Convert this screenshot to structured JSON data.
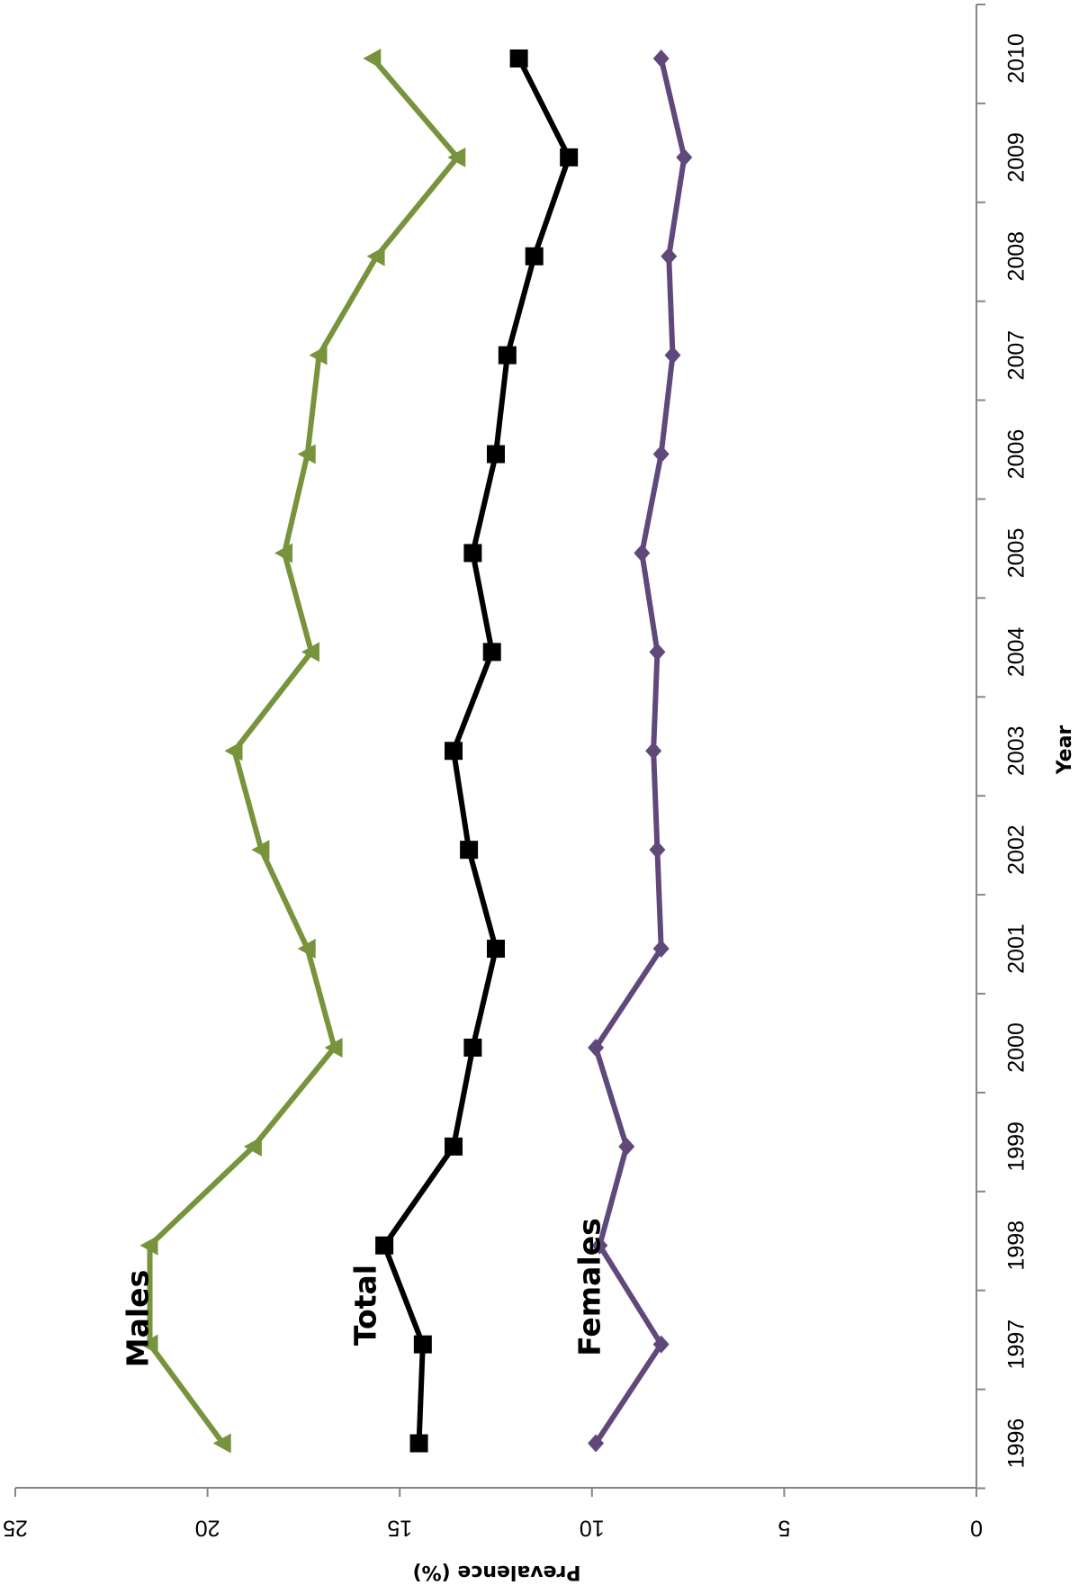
{
  "chart_data": {
    "type": "line",
    "orientation": "rotated-90-clockwise",
    "xlabel": "Year",
    "ylabel": "Prevalence (%)",
    "categories": [
      "1996",
      "1997",
      "1998",
      "1999",
      "2000",
      "2001",
      "2002",
      "2003",
      "2004",
      "2005",
      "2006",
      "2007",
      "2008",
      "2009",
      "2010"
    ],
    "ylim": [
      0,
      25
    ],
    "yticks": [
      "0",
      "5",
      "10",
      "15",
      "20",
      "25"
    ],
    "grid": false,
    "legend": "none",
    "series": [
      {
        "name": "Males",
        "color": "#77933C",
        "marker": "triangle",
        "values": [
          19.6,
          21.5,
          21.5,
          18.8,
          16.7,
          17.4,
          18.6,
          19.3,
          17.3,
          18.0,
          17.4,
          17.1,
          15.6,
          13.5,
          15.7
        ]
      },
      {
        "name": "Total",
        "color": "#000000",
        "marker": "square",
        "values": [
          14.5,
          14.4,
          15.4,
          13.6,
          13.1,
          12.5,
          13.2,
          13.6,
          12.6,
          13.1,
          12.5,
          12.2,
          11.5,
          10.6,
          11.9
        ]
      },
      {
        "name": "Females",
        "color": "#60497A",
        "marker": "diamond",
        "values": [
          9.9,
          8.2,
          9.8,
          9.1,
          9.9,
          8.2,
          8.3,
          8.4,
          8.3,
          8.7,
          8.2,
          7.9,
          8.0,
          7.6,
          8.2
        ]
      }
    ]
  }
}
